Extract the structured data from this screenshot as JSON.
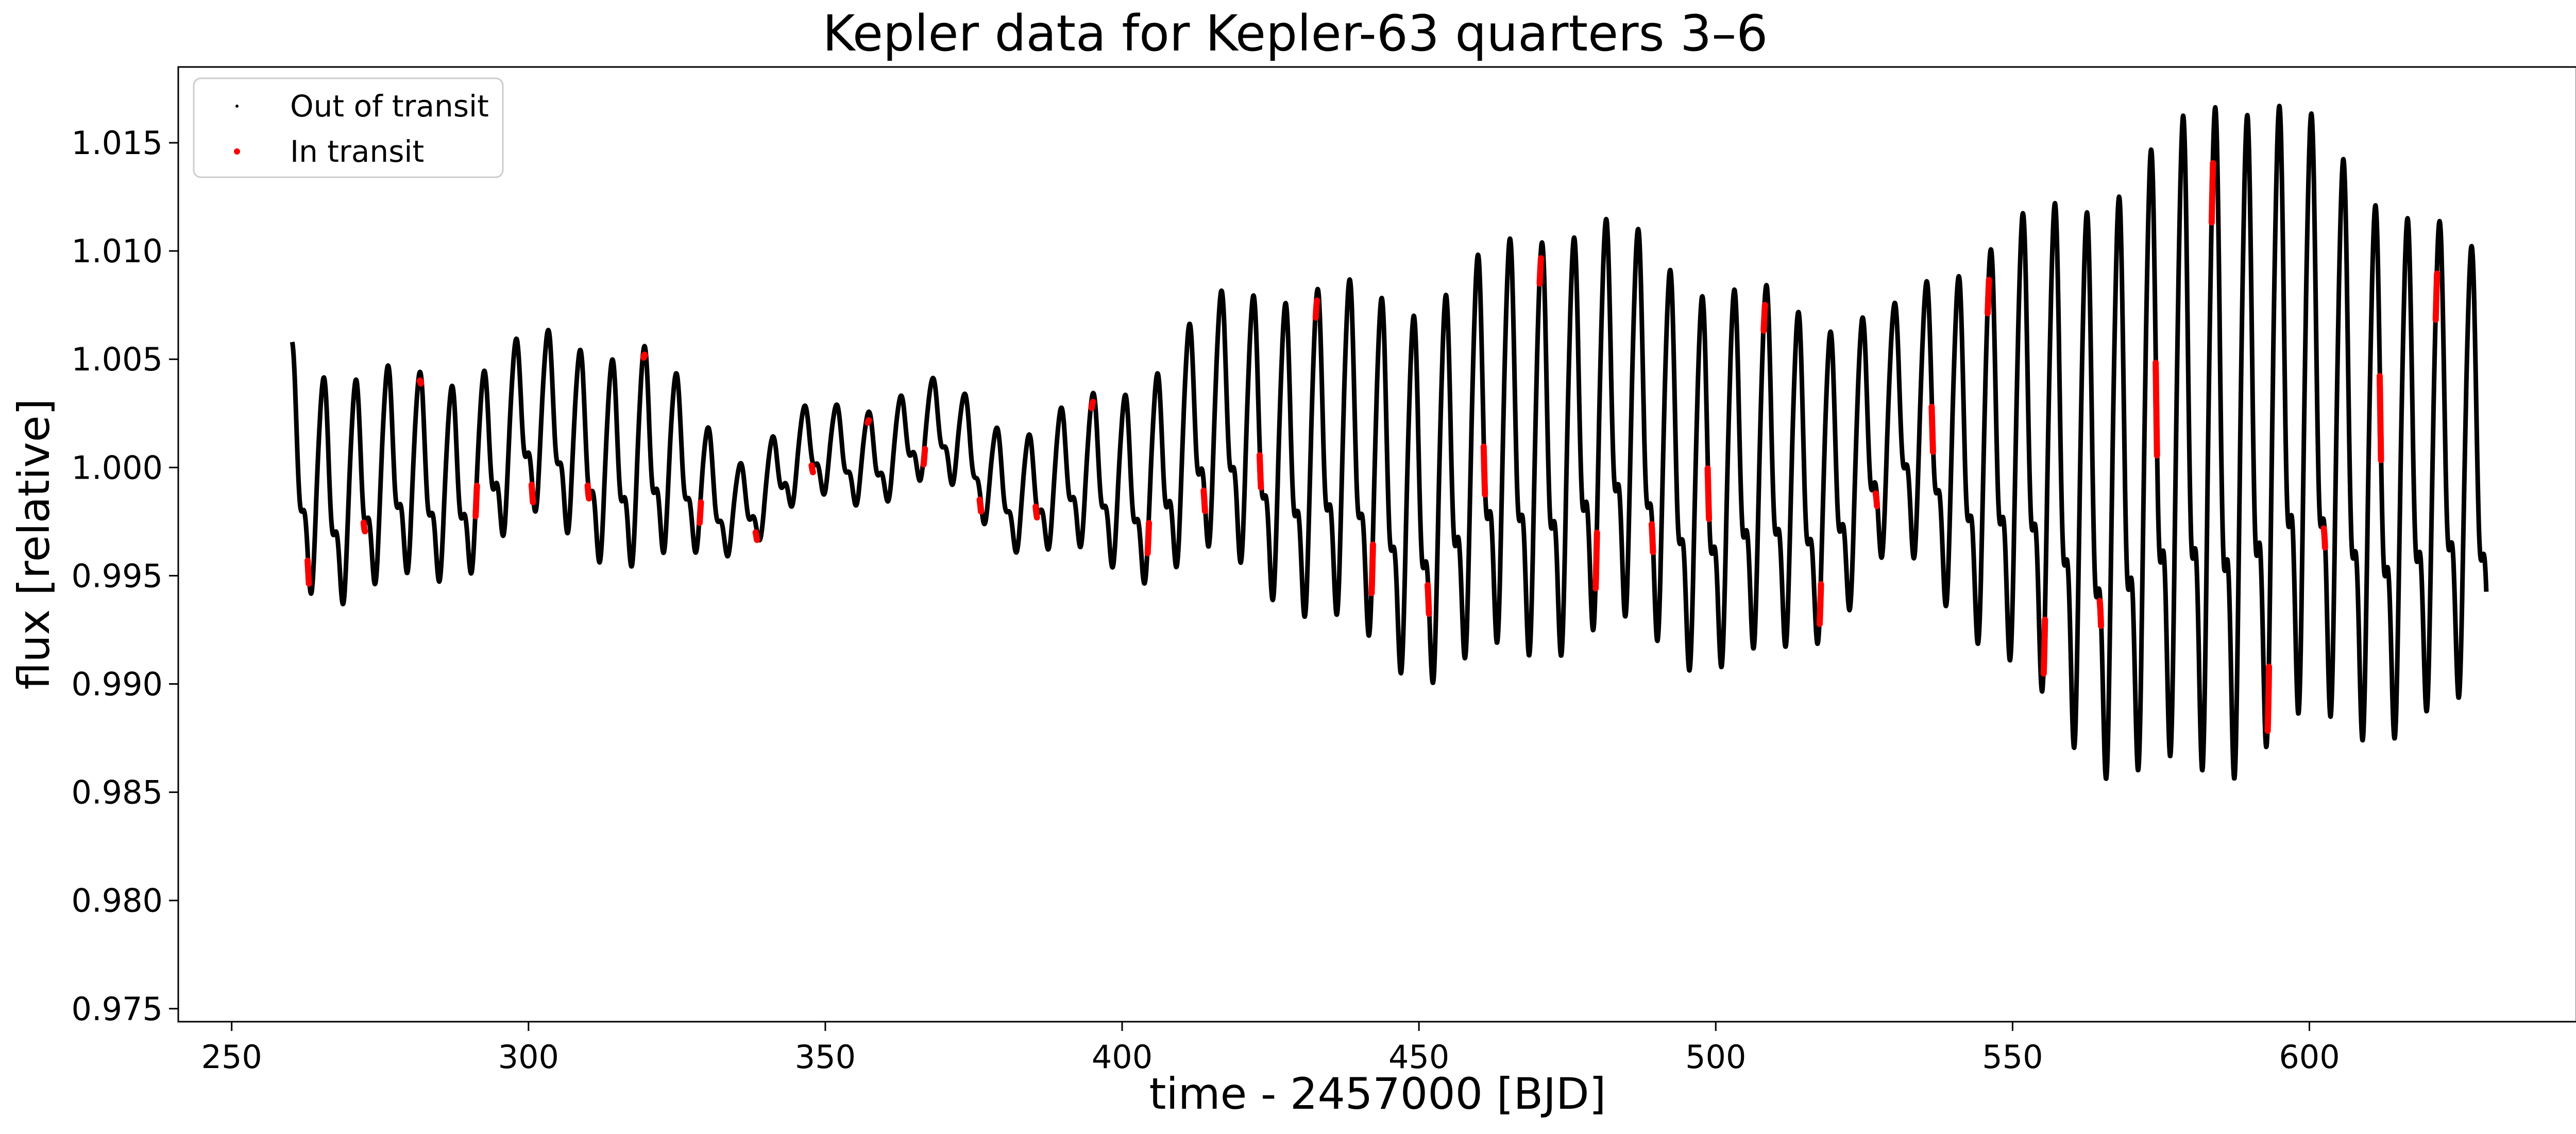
{
  "chart_data": {
    "type": "scatter",
    "title": "Kepler data for Kepler-63 quarters 3–6",
    "xlabel": "time - 2457000 [BJD]",
    "ylabel": "flux [relative]",
    "xlim": [
      241,
      645
    ],
    "ylim": [
      0.9744,
      1.0185
    ],
    "xticks": [
      250,
      300,
      350,
      400,
      450,
      500,
      550,
      600
    ],
    "xtick_labels": [
      "250",
      "300",
      "350",
      "400",
      "450",
      "500",
      "550",
      "600"
    ],
    "yticks": [
      0.975,
      0.98,
      0.985,
      0.99,
      0.995,
      1.0,
      1.005,
      1.01,
      1.015
    ],
    "ytick_labels": [
      "0.975",
      "0.980",
      "0.985",
      "0.990",
      "0.995",
      "1.000",
      "1.005",
      "1.010",
      "1.015"
    ],
    "grid": false,
    "legend_position": "top-left",
    "series": [
      {
        "name": "Out of transit",
        "color": "#000000",
        "marker": "small dot",
        "time_range": [
          260.2,
          629.8
        ],
        "rotation_period_days": 5.4,
        "baseline_flux": 1.0,
        "envelope_points": [
          {
            "t": 261,
            "amplitude": 0.0058
          },
          {
            "t": 300,
            "amplitude": 0.0045
          },
          {
            "t": 320,
            "amplitude": 0.0055
          },
          {
            "t": 335,
            "amplitude": 0.0022
          },
          {
            "t": 370,
            "amplitude": 0.0025
          },
          {
            "t": 385,
            "amplitude": 0.003
          },
          {
            "t": 400,
            "amplitude": 0.0045
          },
          {
            "t": 430,
            "amplitude": 0.008
          },
          {
            "t": 470,
            "amplitude": 0.0105
          },
          {
            "t": 510,
            "amplitude": 0.009
          },
          {
            "t": 530,
            "amplitude": 0.006
          },
          {
            "t": 560,
            "amplitude": 0.0135
          },
          {
            "t": 585,
            "amplitude": 0.017
          },
          {
            "t": 630,
            "amplitude": 0.011
          }
        ]
      },
      {
        "name": "In transit",
        "color": "#ff0000",
        "marker": "dot",
        "period_days": 9.434,
        "first_transit_time": 262.9,
        "transit_duration_days": 0.22,
        "transit_depth": 0.0004
      }
    ]
  }
}
